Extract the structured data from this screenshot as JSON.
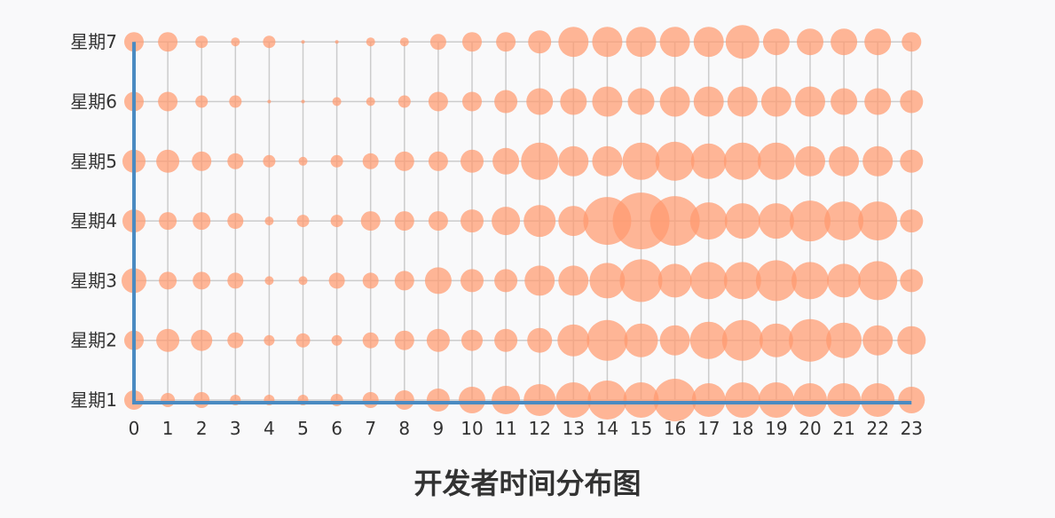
{
  "chart_data": {
    "type": "scatter",
    "title": "开发者时间分布图",
    "xlabel": "",
    "ylabel": "",
    "x_categories": [
      "0",
      "1",
      "2",
      "3",
      "4",
      "5",
      "6",
      "7",
      "8",
      "9",
      "10",
      "11",
      "12",
      "13",
      "14",
      "15",
      "16",
      "17",
      "18",
      "19",
      "20",
      "21",
      "22",
      "23"
    ],
    "y_categories": [
      "星期1",
      "星期2",
      "星期3",
      "星期4",
      "星期5",
      "星期6",
      "星期7"
    ],
    "grid": true,
    "size_encoding": "bubble radius = activity level",
    "series": [
      {
        "values": [
          [
            11,
            8,
            9,
            6,
            6,
            6,
            7,
            9,
            11,
            13,
            15,
            16,
            18,
            20,
            22,
            20,
            24,
            19,
            20,
            20,
            19,
            19,
            19,
            15
          ],
          [
            11,
            13,
            12,
            9,
            6,
            8,
            6,
            9,
            11,
            13,
            12,
            13,
            14,
            18,
            23,
            19,
            17,
            21,
            23,
            19,
            24,
            20,
            17,
            16
          ],
          [
            14,
            10,
            10,
            9,
            5,
            5,
            9,
            9,
            11,
            15,
            13,
            13,
            17,
            17,
            20,
            24,
            19,
            21,
            21,
            23,
            21,
            19,
            22,
            13
          ],
          [
            13,
            10,
            10,
            9,
            5,
            7,
            7,
            11,
            11,
            11,
            13,
            16,
            18,
            17,
            27,
            32,
            28,
            21,
            20,
            20,
            23,
            22,
            22,
            13
          ],
          [
            13,
            13,
            11,
            9,
            7,
            5,
            7,
            9,
            11,
            11,
            13,
            15,
            21,
            17,
            17,
            21,
            22,
            20,
            21,
            21,
            17,
            17,
            17,
            13
          ],
          [
            11,
            11,
            7,
            7,
            2,
            2,
            5,
            5,
            7,
            11,
            11,
            13,
            15,
            15,
            17,
            15,
            17,
            17,
            17,
            17,
            17,
            15,
            15,
            13
          ],
          [
            11,
            11,
            7,
            5,
            7,
            2,
            2,
            5,
            5,
            9,
            11,
            11,
            13,
            17,
            17,
            17,
            17,
            17,
            19,
            15,
            15,
            15,
            15,
            11
          ]
        ]
      }
    ],
    "colors": {
      "bubble": "#ff9a6f",
      "axis": "#4a8bc2",
      "grid": "#cccccc",
      "text": "#333333"
    }
  }
}
